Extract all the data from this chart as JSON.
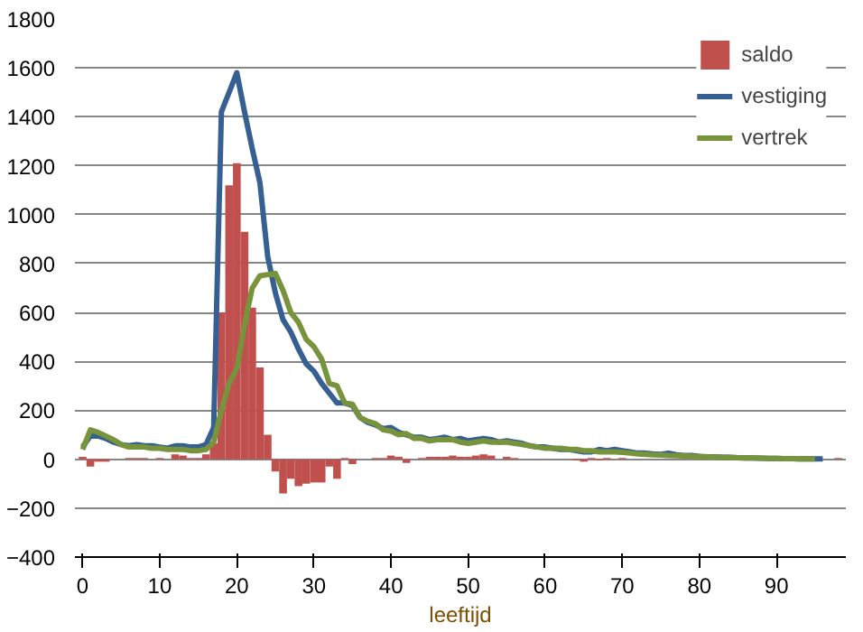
{
  "chart_data": {
    "type": "bar",
    "xlabel": "leeftijd",
    "x": [
      0,
      1,
      2,
      3,
      4,
      5,
      6,
      7,
      8,
      9,
      10,
      11,
      12,
      13,
      14,
      15,
      16,
      17,
      18,
      19,
      20,
      21,
      22,
      23,
      24,
      25,
      26,
      27,
      28,
      29,
      30,
      31,
      32,
      33,
      34,
      35,
      36,
      37,
      38,
      39,
      40,
      41,
      42,
      43,
      44,
      45,
      46,
      47,
      48,
      49,
      50,
      51,
      52,
      53,
      54,
      55,
      56,
      57,
      58,
      59,
      60,
      61,
      62,
      63,
      64,
      65,
      66,
      67,
      68,
      69,
      70,
      71,
      72,
      73,
      74,
      75,
      76,
      77,
      78,
      79,
      80,
      81,
      82,
      83,
      84,
      85,
      86,
      87,
      88,
      89,
      90,
      91,
      92,
      93,
      94,
      95,
      96,
      97,
      98
    ],
    "series": [
      {
        "name": "saldo",
        "color": "#c0504d",
        "values": [
          10,
          -30,
          -10,
          -10,
          0,
          0,
          5,
          5,
          5,
          0,
          5,
          0,
          20,
          15,
          5,
          5,
          20,
          65,
          600,
          1120,
          1210,
          930,
          620,
          375,
          100,
          -50,
          -140,
          -80,
          -110,
          -100,
          -95,
          -95,
          -30,
          -80,
          5,
          -20,
          0,
          0,
          5,
          5,
          15,
          10,
          -15,
          0,
          5,
          10,
          10,
          10,
          15,
          10,
          10,
          15,
          20,
          15,
          0,
          10,
          5,
          0,
          0,
          0,
          0,
          0,
          0,
          0,
          -5,
          -10,
          5,
          -5,
          5,
          0,
          5,
          0,
          0,
          0,
          0,
          0,
          0,
          0,
          0,
          0,
          0,
          0,
          0,
          0,
          0,
          0,
          0,
          0,
          0,
          0,
          0,
          0,
          0,
          0,
          0,
          0,
          0,
          0,
          5
        ]
      },
      {
        "name": "vestiging",
        "type": "line",
        "color": "#376092",
        "values": [
          50,
          95,
          95,
          85,
          70,
          60,
          55,
          60,
          55,
          55,
          50,
          45,
          55,
          55,
          50,
          50,
          60,
          130,
          1420,
          1500,
          1580,
          1420,
          1270,
          1130,
          830,
          680,
          570,
          520,
          450,
          390,
          360,
          310,
          270,
          230,
          230,
          220,
          170,
          150,
          140,
          125,
          130,
          110,
          100,
          90,
          90,
          80,
          85,
          90,
          80,
          85,
          75,
          80,
          85,
          80,
          70,
          75,
          70,
          65,
          55,
          50,
          50,
          45,
          40,
          40,
          35,
          30,
          30,
          40,
          35,
          40,
          35,
          30,
          25,
          25,
          22,
          20,
          25,
          18,
          15,
          15,
          12,
          10,
          10,
          8,
          8,
          6,
          5,
          5,
          4,
          3,
          3,
          2,
          2,
          1,
          1,
          1,
          1,
          null,
          null
        ]
      },
      {
        "name": "vertrek",
        "type": "line",
        "color": "#77933c",
        "values": [
          40,
          120,
          110,
          95,
          80,
          60,
          50,
          50,
          50,
          45,
          45,
          40,
          40,
          40,
          35,
          35,
          40,
          70,
          200,
          310,
          370,
          550,
          700,
          750,
          755,
          760,
          690,
          600,
          560,
          490,
          460,
          410,
          310,
          300,
          230,
          225,
          170,
          155,
          145,
          120,
          115,
          100,
          105,
          85,
          85,
          75,
          80,
          80,
          80,
          70,
          65,
          70,
          75,
          70,
          70,
          70,
          65,
          60,
          55,
          50,
          45,
          45,
          45,
          40,
          40,
          35,
          35,
          30,
          30,
          30,
          28,
          25,
          22,
          20,
          18,
          17,
          15,
          14,
          13,
          12,
          11,
          10,
          9,
          8,
          7,
          6,
          5,
          5,
          4,
          3,
          3,
          2,
          2,
          1,
          1,
          1,
          null,
          null,
          null
        ]
      }
    ],
    "xlim": [
      -1,
      99
    ],
    "xticks": [
      0,
      10,
      20,
      30,
      40,
      50,
      60,
      70,
      80,
      90
    ],
    "ylim": [
      -400,
      1800
    ],
    "yticks": [
      -400,
      -200,
      0,
      200,
      400,
      600,
      800,
      1000,
      1200,
      1400,
      1600,
      1800
    ],
    "grid": "y",
    "legend": "top right"
  }
}
